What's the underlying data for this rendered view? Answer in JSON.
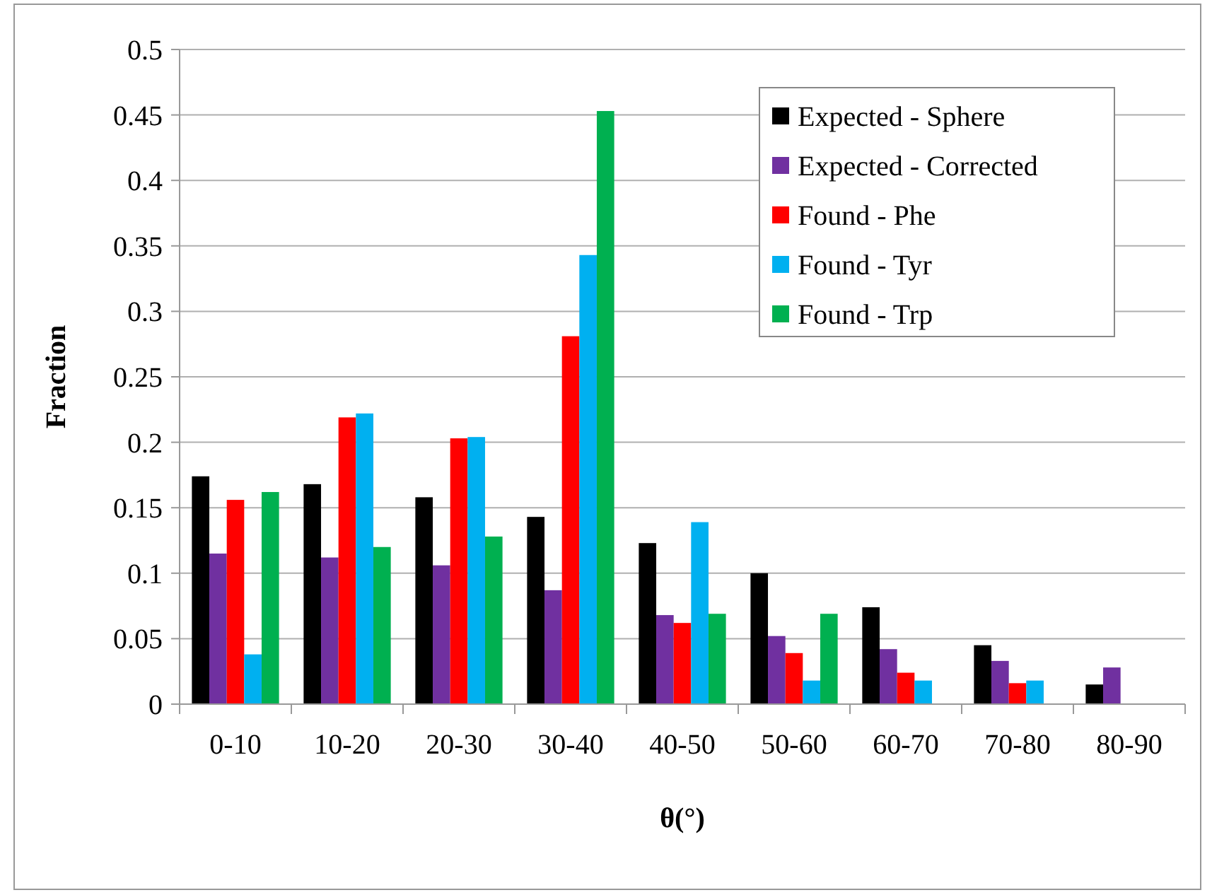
{
  "chart_data": {
    "type": "bar",
    "xlabel": "θ(°)",
    "ylabel": "Fraction",
    "categories": [
      "0-10",
      "10-20",
      "20-30",
      "30-40",
      "40-50",
      "50-60",
      "60-70",
      "70-80",
      "80-90"
    ],
    "series": [
      {
        "name": "Expected - Sphere",
        "color": "#000000",
        "values": [
          0.174,
          0.168,
          0.158,
          0.143,
          0.123,
          0.1,
          0.074,
          0.045,
          0.015
        ]
      },
      {
        "name": "Expected - Corrected",
        "color": "#7030a0",
        "values": [
          0.115,
          0.112,
          0.106,
          0.087,
          0.068,
          0.052,
          0.042,
          0.033,
          0.028
        ]
      },
      {
        "name": "Found - Phe",
        "color": "#ff0000",
        "values": [
          0.156,
          0.219,
          0.203,
          0.281,
          0.062,
          0.039,
          0.024,
          0.016,
          null
        ]
      },
      {
        "name": "Found - Tyr",
        "color": "#00b0f0",
        "values": [
          0.038,
          0.222,
          0.204,
          0.343,
          0.139,
          0.018,
          0.018,
          0.018,
          null
        ]
      },
      {
        "name": "Found - Trp",
        "color": "#00b050",
        "values": [
          0.162,
          0.12,
          0.128,
          0.453,
          0.069,
          0.069,
          null,
          null,
          null
        ]
      }
    ],
    "ylim": [
      0,
      0.5
    ],
    "yticks": [
      0,
      0.05,
      0.1,
      0.15,
      0.2,
      0.25,
      0.3,
      0.35,
      0.4,
      0.45,
      0.5
    ],
    "grid": "y",
    "legend": "top right"
  }
}
